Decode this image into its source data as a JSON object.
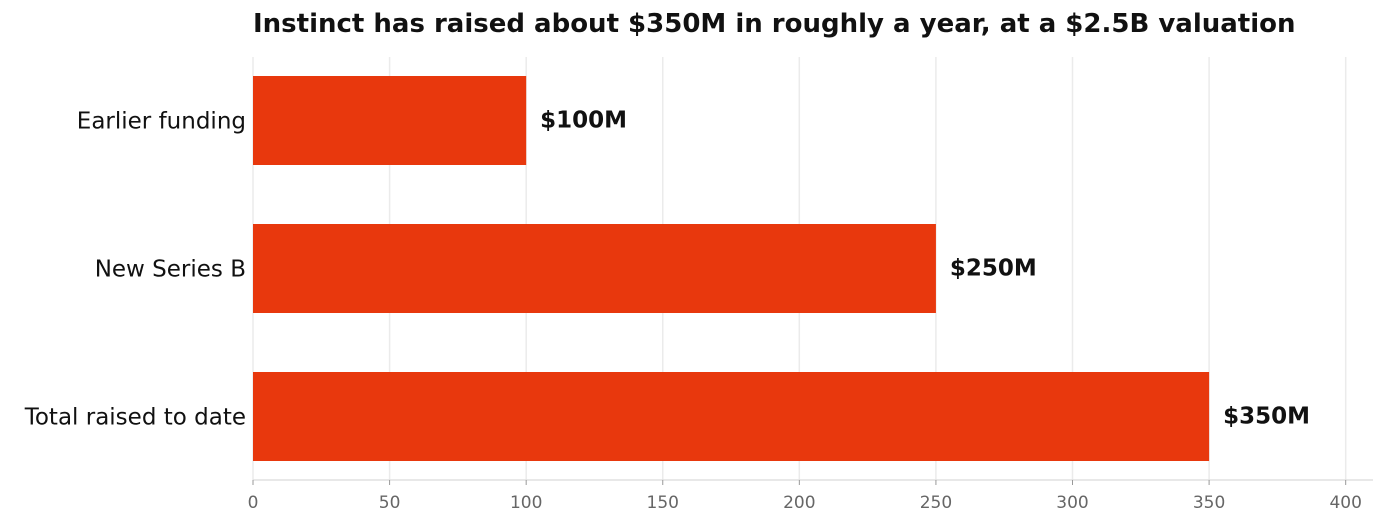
{
  "chart_data": {
    "type": "bar",
    "orientation": "horizontal",
    "title": "Instinct has raised about $350M in roughly a year, at a $2.5B valuation",
    "xlabel": "",
    "ylabel": "",
    "categories": [
      "Earlier funding",
      "New Series B",
      "Total raised to date"
    ],
    "values": [
      100,
      250,
      350
    ],
    "data_labels": [
      "$100M",
      "$250M",
      "$350M"
    ],
    "xlim": [
      0,
      410
    ],
    "x_ticks": [
      0,
      50,
      100,
      150,
      200,
      250,
      300,
      350,
      400
    ],
    "x_tick_labels": [
      "0",
      "50",
      "100",
      "150",
      "200",
      "250",
      "300",
      "350",
      "400"
    ],
    "grid": "vertical",
    "legend": "none",
    "colors": {
      "bar": "#e8380d",
      "grid": "#ebebeb",
      "axis": "#e0e0e0",
      "text": "#111111",
      "tick_text": "#666666"
    }
  }
}
